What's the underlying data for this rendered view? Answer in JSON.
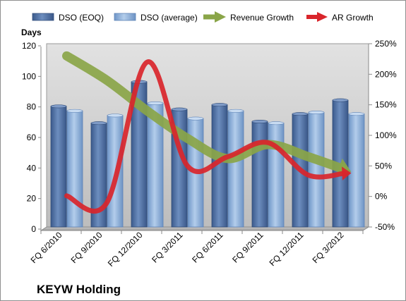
{
  "chart_data": {
    "type": "bar",
    "title": "KEYW Holding",
    "ylabel": "Days",
    "ylim": [
      0,
      120
    ],
    "yticks": [
      "0",
      "20",
      "40",
      "60",
      "80",
      "100",
      "120"
    ],
    "y2lim": [
      -50,
      250
    ],
    "y2ticks": [
      "-50%",
      "0%",
      "50%",
      "100%",
      "150%",
      "200%",
      "250%"
    ],
    "categories": [
      "FQ 6/2010",
      "FQ 9/2010",
      "FQ 12/2010",
      "FQ 3/2011",
      "FQ 6/2011",
      "FQ 9/2011",
      "FQ 12/2011",
      "FQ 3/2012"
    ],
    "series": [
      {
        "name": "DSO (EOQ)",
        "type": "bar",
        "axis": "left",
        "color": "#4f6fa0",
        "values": [
          79,
          68,
          95,
          77,
          80,
          69,
          74,
          83
        ]
      },
      {
        "name": "DSO (average)",
        "type": "bar",
        "axis": "left",
        "color": "#86aad6",
        "values": [
          76,
          73,
          81,
          71,
          76,
          68,
          75,
          74
        ]
      },
      {
        "name": "Revenue Growth",
        "type": "line-arrow",
        "axis": "right",
        "color": "#8aa548",
        "values": [
          230,
          190,
          140,
          95,
          62,
          85,
          65,
          42
        ]
      },
      {
        "name": "AR Growth",
        "type": "line-arrow",
        "axis": "right",
        "color": "#d9252b",
        "values": [
          1,
          -10,
          220,
          50,
          65,
          88,
          35,
          38
        ]
      }
    ],
    "grid": false,
    "legend": "top"
  }
}
